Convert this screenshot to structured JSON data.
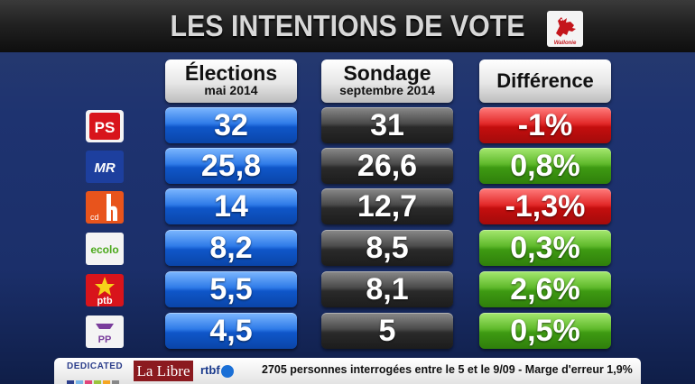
{
  "title": "LES INTENTIONS DE VOTE",
  "emblem": {
    "name": "wallonie-rooster-icon",
    "text": "Wallonie",
    "color": "#c4161c"
  },
  "columns": {
    "elections": {
      "main": "Élections",
      "sub": "mai 2014"
    },
    "sondage": {
      "main": "Sondage",
      "sub": "septembre 2014"
    },
    "difference": {
      "main": "Différence"
    }
  },
  "rows": [
    {
      "party": "PS",
      "logo": "ps-logo",
      "elections": "32",
      "sondage": "31",
      "difference": "-1%",
      "trend": "down"
    },
    {
      "party": "MR",
      "logo": "mr-logo",
      "elections": "25,8",
      "sondage": "26,6",
      "difference": "0,8%",
      "trend": "up"
    },
    {
      "party": "cdh",
      "logo": "cdh-logo",
      "elections": "14",
      "sondage": "12,7",
      "difference": "-1,3%",
      "trend": "down"
    },
    {
      "party": "ecolo",
      "logo": "ecolo-logo",
      "elections": "8,2",
      "sondage": "8,5",
      "difference": "0,3%",
      "trend": "up"
    },
    {
      "party": "ptb",
      "logo": "ptb-logo",
      "elections": "5,5",
      "sondage": "8,1",
      "difference": "2,6%",
      "trend": "up"
    },
    {
      "party": "PP",
      "logo": "pp-logo",
      "elections": "4,5",
      "sondage": "5",
      "difference": "0,5%",
      "trend": "up"
    }
  ],
  "colors": {
    "elections": "#1a5fd0",
    "sondage": "#333333",
    "negative": "#c41414",
    "positive": "#4aa81a"
  },
  "footer": {
    "dedicated": "DEDICATED",
    "lalibre": "La Libre",
    "rtbf": "rtbf",
    "note": "2705 personnes interrogées entre le 5 et le 9/09 - Marge d'erreur 1,9%"
  }
}
